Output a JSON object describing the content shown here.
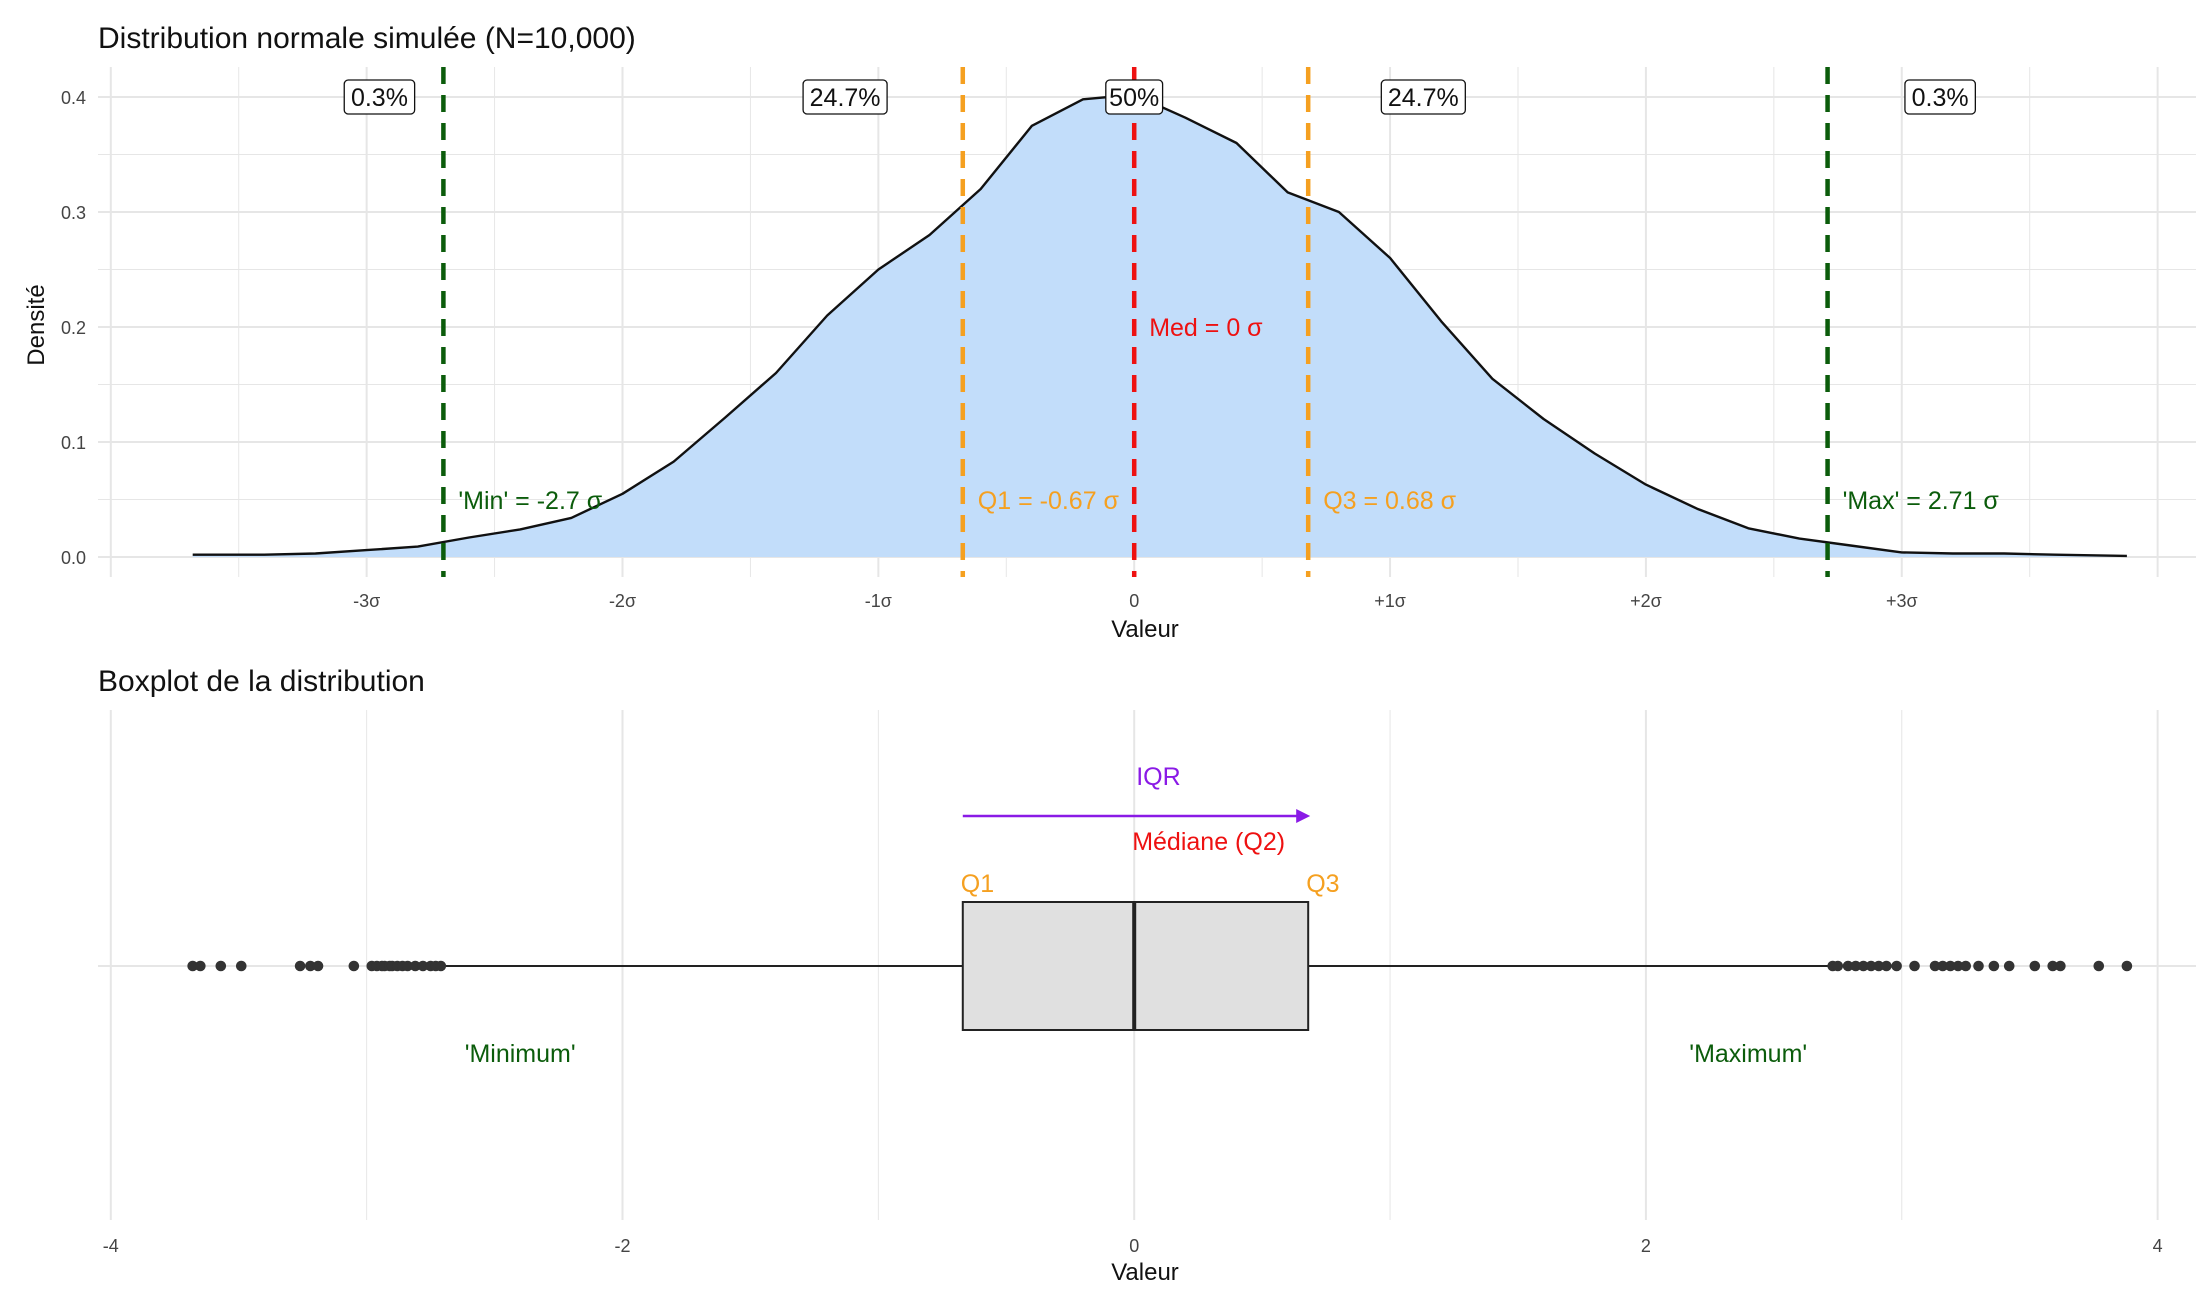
{
  "colors": {
    "fill": "#c2ddfa",
    "curve": "#111111",
    "grid": "#e6e6e6",
    "minmax": "#0b5c0b",
    "quartile": "#f5a020",
    "median": "#ee1111",
    "iqr": "#8a1ae6",
    "box": "#e0e0e0",
    "outlier": "#333333"
  },
  "chart_data": [
    {
      "type": "area",
      "title": "Distribution normale simulée (N=10,000)",
      "xlabel": "Valeur",
      "ylabel": "Densité",
      "xlim": [
        -4.05,
        4.15
      ],
      "ylim": [
        0,
        0.4
      ],
      "grid": true,
      "yticks": [
        0.0,
        0.1,
        0.2,
        0.3,
        0.4
      ],
      "ytick_labels": [
        "0.0",
        "0.1",
        "0.2",
        "0.3",
        "0.4"
      ],
      "xticks": [
        -3,
        -2,
        -1,
        0,
        1,
        2,
        3
      ],
      "xtick_labels": [
        "-3σ",
        "-2σ",
        "-1σ",
        "0",
        "+1σ",
        "+2σ",
        "+3σ"
      ],
      "density": {
        "x": [
          -3.68,
          -3.4,
          -3.2,
          -3.0,
          -2.8,
          -2.6,
          -2.4,
          -2.2,
          -2.0,
          -1.8,
          -1.6,
          -1.4,
          -1.2,
          -1.0,
          -0.8,
          -0.6,
          -0.4,
          -0.2,
          0.0,
          0.2,
          0.4,
          0.6,
          0.8,
          1.0,
          1.2,
          1.4,
          1.6,
          1.8,
          2.0,
          2.2,
          2.4,
          2.6,
          2.8,
          3.0,
          3.2,
          3.4,
          3.6,
          3.88
        ],
        "y": [
          0.002,
          0.002,
          0.003,
          0.006,
          0.009,
          0.017,
          0.024,
          0.034,
          0.055,
          0.083,
          0.121,
          0.16,
          0.21,
          0.25,
          0.28,
          0.32,
          0.375,
          0.398,
          0.402,
          0.382,
          0.36,
          0.317,
          0.3,
          0.26,
          0.205,
          0.155,
          0.12,
          0.09,
          0.063,
          0.042,
          0.025,
          0.016,
          0.01,
          0.004,
          0.003,
          0.003,
          0.002,
          0.001
        ]
      },
      "vlines": [
        {
          "x": -2.7,
          "kind": "minmax",
          "label": "'Min' = -2.7 σ"
        },
        {
          "x": -0.67,
          "kind": "quartile",
          "label": "Q1 = -0.67 σ"
        },
        {
          "x": 0,
          "kind": "median",
          "label": "Med = 0 σ"
        },
        {
          "x": 0.68,
          "kind": "quartile",
          "label": "Q3 = 0.68 σ"
        },
        {
          "x": 2.71,
          "kind": "minmax",
          "label": "'Max' = 2.71 σ"
        }
      ],
      "percent_labels": [
        {
          "x": -2.95,
          "label": "0.3%"
        },
        {
          "x": -1.13,
          "label": "24.7%"
        },
        {
          "x": 0.0,
          "label": "50%"
        },
        {
          "x": 1.13,
          "label": "24.7%"
        },
        {
          "x": 3.15,
          "label": "0.3%"
        }
      ]
    },
    {
      "type": "boxplot",
      "title": "Boxplot de la distribution",
      "xlabel": "Valeur",
      "xlim": [
        -4.05,
        4.15
      ],
      "grid": true,
      "xticks": [
        -4,
        -2,
        0,
        2,
        4
      ],
      "xtick_labels": [
        "-4",
        "-2",
        "0",
        "2",
        "4"
      ],
      "box": {
        "q1": -0.67,
        "median": 0.0,
        "q3": 0.68,
        "whisker_low": -2.7,
        "whisker_high": 2.71
      },
      "outliers": [
        -3.68,
        -3.65,
        -3.57,
        -3.49,
        -3.26,
        -3.22,
        -3.19,
        -3.05,
        -2.98,
        -2.96,
        -2.94,
        -2.93,
        -2.91,
        -2.9,
        -2.88,
        -2.86,
        -2.84,
        -2.81,
        -2.78,
        -2.75,
        -2.73,
        -2.71,
        2.73,
        2.75,
        2.79,
        2.82,
        2.85,
        2.88,
        2.91,
        2.94,
        2.98,
        3.05,
        3.13,
        3.16,
        3.19,
        3.22,
        3.25,
        3.3,
        3.36,
        3.42,
        3.52,
        3.59,
        3.62,
        3.77,
        3.88
      ],
      "annotations": {
        "iqr": "IQR",
        "median": "Médiane (Q2)",
        "q1": "Q1",
        "q3": "Q3",
        "minimum": "'Minimum'",
        "maximum": "'Maximum'"
      }
    }
  ]
}
